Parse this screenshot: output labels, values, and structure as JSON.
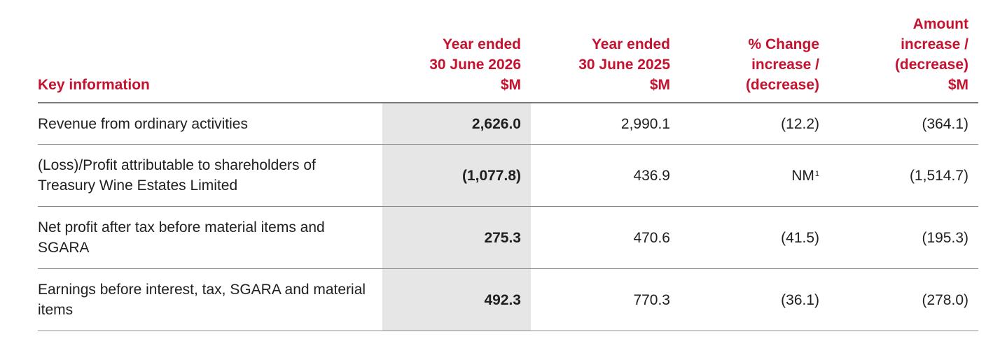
{
  "table": {
    "headers": {
      "label": "Key information",
      "current": [
        "Year ended",
        "30 June 2026",
        "$M"
      ],
      "prior": [
        "Year ended",
        "30 June 2025",
        "$M"
      ],
      "pct_change": [
        "% Change",
        "increase /",
        "(decrease)"
      ],
      "amount_change": [
        "Amount",
        "increase /",
        "(decrease)",
        "$M"
      ]
    },
    "rows": [
      {
        "label": "Revenue from ordinary activities",
        "current": "2,626.0",
        "prior": "2,990.1",
        "pct_change": "(12.2)",
        "pct_note": "",
        "amount_change": "(364.1)"
      },
      {
        "label": "(Loss)/Profit attributable to shareholders of Treasury Wine Estates Limited",
        "current": "(1,077.8)",
        "prior": "436.9",
        "pct_change": "NM",
        "pct_note": "1",
        "amount_change": "(1,514.7)"
      },
      {
        "label": "Net profit after tax before material items and SGARA",
        "current": "275.3",
        "prior": "470.6",
        "pct_change": "(41.5)",
        "pct_note": "",
        "amount_change": "(195.3)"
      },
      {
        "label": "Earnings before interest, tax, SGARA and material items",
        "current": "492.3",
        "prior": "770.3",
        "pct_change": "(36.1)",
        "pct_note": "",
        "amount_change": "(278.0)"
      }
    ]
  },
  "colors": {
    "header_text": "#c4122f",
    "highlight_column_bg": "#e6e6e6",
    "rule": "#7a7a7a"
  }
}
